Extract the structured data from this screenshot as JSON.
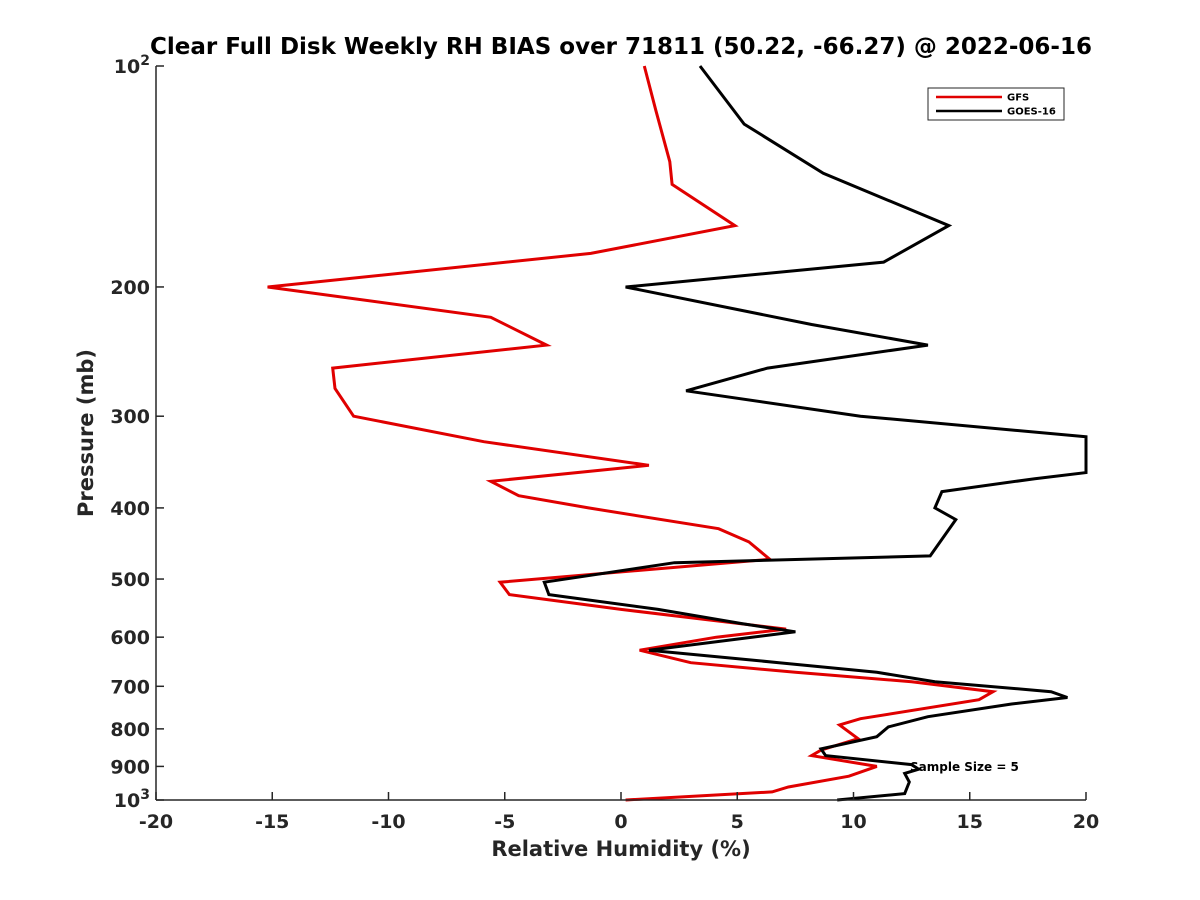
{
  "chart_data": {
    "type": "line",
    "title": "Clear Full Disk Weekly RH BIAS over 71811 (50.22, -66.27) @ 2022-06-16",
    "xlabel": "Relative Humidity (%)",
    "ylabel": "Pressure (mb)",
    "xlim": [
      -20,
      20
    ],
    "ylim": [
      100,
      1000
    ],
    "y_scale": "log",
    "y_reversed": true,
    "x_ticks": [
      -20,
      -15,
      -10,
      -5,
      0,
      5,
      10,
      15,
      20
    ],
    "x_tick_labels": [
      "-20",
      "-15",
      "-10",
      "-5",
      "0",
      "5",
      "10",
      "15",
      "20"
    ],
    "y_ticks": [
      100,
      200,
      300,
      400,
      500,
      600,
      700,
      800,
      900,
      1000
    ],
    "y_tick_labels": [
      {
        "base": "10",
        "exp": "2"
      },
      {
        "base": "200",
        "exp": ""
      },
      {
        "base": "300",
        "exp": ""
      },
      {
        "base": "400",
        "exp": ""
      },
      {
        "base": "500",
        "exp": ""
      },
      {
        "base": "600",
        "exp": ""
      },
      {
        "base": "700",
        "exp": ""
      },
      {
        "base": "800",
        "exp": ""
      },
      {
        "base": "900",
        "exp": ""
      },
      {
        "base": "10",
        "exp": "3"
      }
    ],
    "grid": false,
    "legend_position": "top-right",
    "annotation": "Sample Size = 5",
    "series": [
      {
        "name": "GFS",
        "color": "#e00000",
        "points": [
          [
            1.0,
            100
          ],
          [
            1.5,
            115
          ],
          [
            2.1,
            135
          ],
          [
            2.2,
            145
          ],
          [
            4.9,
            165
          ],
          [
            -1.3,
            180
          ],
          [
            -15.2,
            200
          ],
          [
            -5.6,
            220
          ],
          [
            -3.2,
            240
          ],
          [
            -12.4,
            258
          ],
          [
            -12.3,
            275
          ],
          [
            -11.5,
            300
          ],
          [
            -5.9,
            325
          ],
          [
            1.2,
            350
          ],
          [
            -5.6,
            368
          ],
          [
            -4.4,
            385
          ],
          [
            -1.4,
            400
          ],
          [
            4.2,
            427
          ],
          [
            5.5,
            445
          ],
          [
            6.4,
            470
          ],
          [
            -5.2,
            505
          ],
          [
            -4.8,
            525
          ],
          [
            0.0,
            550
          ],
          [
            7.1,
            585
          ],
          [
            4.1,
            600
          ],
          [
            0.8,
            625
          ],
          [
            3.0,
            650
          ],
          [
            7.5,
            670
          ],
          [
            12.5,
            690
          ],
          [
            16.0,
            712
          ],
          [
            15.4,
            730
          ],
          [
            10.3,
            775
          ],
          [
            9.4,
            790
          ],
          [
            10.2,
            825
          ],
          [
            8.6,
            855
          ],
          [
            8.2,
            870
          ],
          [
            11.0,
            900
          ],
          [
            9.8,
            928
          ],
          [
            7.2,
            960
          ],
          [
            6.5,
            975
          ],
          [
            0.2,
            1000
          ]
        ]
      },
      {
        "name": "GOES-16",
        "color": "#000000",
        "points": [
          [
            3.4,
            100
          ],
          [
            5.3,
            120
          ],
          [
            8.7,
            140
          ],
          [
            14.1,
            165
          ],
          [
            11.3,
            185
          ],
          [
            0.2,
            200
          ],
          [
            8.2,
            225
          ],
          [
            13.2,
            240
          ],
          [
            6.3,
            258
          ],
          [
            2.8,
            277
          ],
          [
            10.3,
            300
          ],
          [
            20.0,
            320
          ],
          [
            20.0,
            358
          ],
          [
            17.8,
            365
          ],
          [
            13.8,
            380
          ],
          [
            13.5,
            400
          ],
          [
            14.4,
            415
          ],
          [
            13.3,
            465
          ],
          [
            2.3,
            475
          ],
          [
            -3.3,
            505
          ],
          [
            -3.1,
            525
          ],
          [
            1.6,
            550
          ],
          [
            5.2,
            575
          ],
          [
            7.5,
            590
          ],
          [
            1.2,
            625
          ],
          [
            6.8,
            650
          ],
          [
            11.0,
            670
          ],
          [
            13.5,
            690
          ],
          [
            18.5,
            712
          ],
          [
            19.2,
            725
          ],
          [
            16.8,
            740
          ],
          [
            13.2,
            770
          ],
          [
            11.5,
            795
          ],
          [
            11.0,
            820
          ],
          [
            8.6,
            852
          ],
          [
            8.8,
            870
          ],
          [
            12.5,
            895
          ],
          [
            12.8,
            908
          ],
          [
            12.2,
            920
          ],
          [
            12.4,
            945
          ],
          [
            12.2,
            980
          ],
          [
            9.3,
            1000
          ]
        ]
      }
    ]
  }
}
